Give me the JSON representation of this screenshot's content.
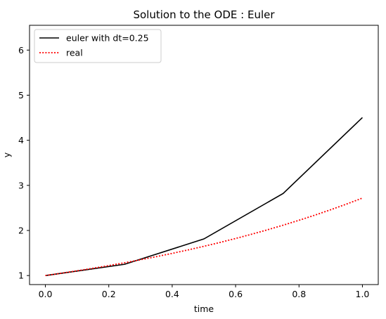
{
  "chart_data": {
    "type": "line",
    "title": "Solution to the ODE : Euler",
    "xlabel": "time",
    "ylabel": "y",
    "xlim": [
      -0.05,
      1.05
    ],
    "ylim": [
      0.8,
      6.55
    ],
    "xticks": [
      0.0,
      0.2,
      0.4,
      0.6,
      0.8,
      1.0
    ],
    "xtick_labels": [
      "0.0",
      "0.2",
      "0.4",
      "0.6",
      "0.8",
      "1.0"
    ],
    "yticks": [
      1,
      2,
      3,
      4,
      5,
      6
    ],
    "ytick_labels": [
      "1",
      "2",
      "3",
      "4",
      "5",
      "6"
    ],
    "grid": false,
    "legend_position": "upper-left",
    "series": [
      {
        "name": "euler with dt=0.25",
        "color": "#000000",
        "style": "solid",
        "x": [
          0.0,
          0.25,
          0.5,
          0.75,
          1.0
        ],
        "y": [
          1.0,
          1.25,
          1.8125,
          2.8203,
          4.5039
        ]
      },
      {
        "name": "real",
        "color": "#ff0000",
        "style": "dotted",
        "x": [
          0.0,
          0.05,
          0.1,
          0.15,
          0.2,
          0.25,
          0.3,
          0.35,
          0.4,
          0.45,
          0.5,
          0.55,
          0.6,
          0.65,
          0.7,
          0.75,
          0.8,
          0.85,
          0.9,
          0.95,
          1.0
        ],
        "y": [
          1.0,
          1.0513,
          1.1052,
          1.1618,
          1.2214,
          1.284,
          1.3499,
          1.4191,
          1.4918,
          1.5683,
          1.6487,
          1.7333,
          1.8221,
          1.9155,
          2.0138,
          2.117,
          2.2255,
          2.3396,
          2.4596,
          2.5857,
          2.7183
        ]
      }
    ]
  }
}
